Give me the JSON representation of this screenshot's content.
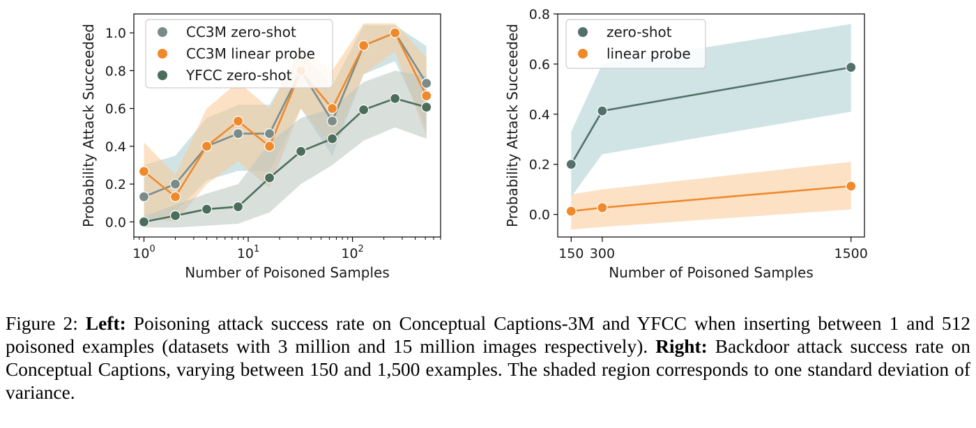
{
  "colors": {
    "cc3m_zero_shot": "#7a8c8a",
    "cc3m_linear_probe": "#f0892a",
    "yfcc_zero_shot": "#4b6e5c",
    "band_zero_shot": "#a9cdd2",
    "band_linear_probe": "#f9c895",
    "band_yfcc": "#b9c4bd",
    "right_zero_shot": "#54706a",
    "right_linear_probe": "#f0892a"
  },
  "chart_data": [
    {
      "type": "line",
      "panel": "left",
      "xscale": "log",
      "xlim": [
        0.8,
        700
      ],
      "ylim": [
        -0.08,
        1.1
      ],
      "xlabel": "Number of Poisoned Samples",
      "ylabel": "Probability Attack Succeeded",
      "x_ticks": [
        {
          "value": 1,
          "base": "10",
          "exp": "0"
        },
        {
          "value": 10,
          "base": "10",
          "exp": "1"
        },
        {
          "value": 100,
          "base": "10",
          "exp": "2"
        }
      ],
      "y_ticks": [
        "0.0",
        "0.2",
        "0.4",
        "0.6",
        "0.8",
        "1.0"
      ],
      "y_tick_values": [
        0,
        0.2,
        0.4,
        0.6,
        0.8,
        1.0
      ],
      "legend_position": "top-left",
      "grid": false,
      "x": [
        1,
        2,
        4,
        8,
        16,
        32,
        64,
        128,
        256,
        512
      ],
      "series": [
        {
          "name": "CC3M zero-shot",
          "color_key": "cc3m_zero_shot",
          "band_key": "band_zero_shot",
          "values": [
            0.133,
            0.2,
            0.4,
            0.467,
            0.467,
            0.8,
            0.533,
            0.933,
            1.0,
            0.733
          ],
          "lower": [
            0.0,
            0.05,
            0.22,
            0.27,
            0.27,
            0.6,
            0.35,
            0.78,
            0.85,
            0.5
          ],
          "upper": [
            0.3,
            0.35,
            0.55,
            0.62,
            0.62,
            0.9,
            0.72,
            1.04,
            1.04,
            0.93
          ]
        },
        {
          "name": "CC3M linear probe",
          "color_key": "cc3m_linear_probe",
          "band_key": "band_linear_probe",
          "values": [
            0.267,
            0.133,
            0.4,
            0.533,
            0.4,
            0.8,
            0.6,
            0.933,
            1.0,
            0.667
          ],
          "lower": [
            0.02,
            0.0,
            0.2,
            0.32,
            0.18,
            0.6,
            0.4,
            0.78,
            0.9,
            0.45
          ],
          "upper": [
            0.42,
            0.25,
            0.6,
            0.74,
            0.6,
            0.92,
            0.8,
            1.05,
            1.05,
            0.87
          ]
        },
        {
          "name": "YFCC zero-shot",
          "color_key": "yfcc_zero_shot",
          "band_key": "band_yfcc",
          "values": [
            0.0,
            0.033,
            0.067,
            0.08,
            0.233,
            0.373,
            0.44,
            0.593,
            0.653,
            0.607
          ],
          "lower": [
            -0.03,
            -0.03,
            -0.02,
            -0.01,
            0.05,
            0.2,
            0.3,
            0.43,
            0.5,
            0.44
          ],
          "upper": [
            0.03,
            0.09,
            0.15,
            0.2,
            0.42,
            0.55,
            0.6,
            0.74,
            0.8,
            0.77
          ]
        }
      ]
    },
    {
      "type": "line",
      "panel": "right",
      "xscale": "linear",
      "xlim": [
        85,
        1565
      ],
      "ylim": [
        -0.09,
        0.8
      ],
      "xlabel": "Number of Poisoned Samples",
      "ylabel": "Probability Attack Succeeded",
      "x_ticks": [
        "150",
        "300",
        "1500"
      ],
      "x_tick_values": [
        150,
        300,
        1500
      ],
      "y_ticks": [
        "0.0",
        "0.2",
        "0.4",
        "0.6",
        "0.8"
      ],
      "y_tick_values": [
        0,
        0.2,
        0.4,
        0.6,
        0.8
      ],
      "legend_position": "top-left",
      "grid": false,
      "x": [
        150,
        300,
        1500
      ],
      "series": [
        {
          "name": "zero-shot",
          "color_key": "right_zero_shot",
          "band_key": "band_zero_shot",
          "values": [
            0.2,
            0.413,
            0.587
          ],
          "lower": [
            0.07,
            0.24,
            0.41
          ],
          "upper": [
            0.33,
            0.6,
            0.76
          ]
        },
        {
          "name": "linear probe",
          "color_key": "right_linear_probe",
          "band_key": "band_linear_probe",
          "values": [
            0.013,
            0.027,
            0.113
          ],
          "lower": [
            -0.06,
            -0.05,
            0.02
          ],
          "upper": [
            0.08,
            0.1,
            0.21
          ]
        }
      ]
    }
  ],
  "caption": {
    "figure_label": "Figure 2:",
    "left_label": "Left:",
    "left_text": "Poisoning attack success rate on Conceptual Captions-3M and YFCC when inserting between 1 and 512 poisoned examples (datasets with 3 million and 15 million images respectively).",
    "right_label": "Right:",
    "right_text": "Backdoor attack success rate on Conceptual Captions, varying between 150 and 1,500 examples. The shaded region corresponds to one standard deviation of variance."
  }
}
